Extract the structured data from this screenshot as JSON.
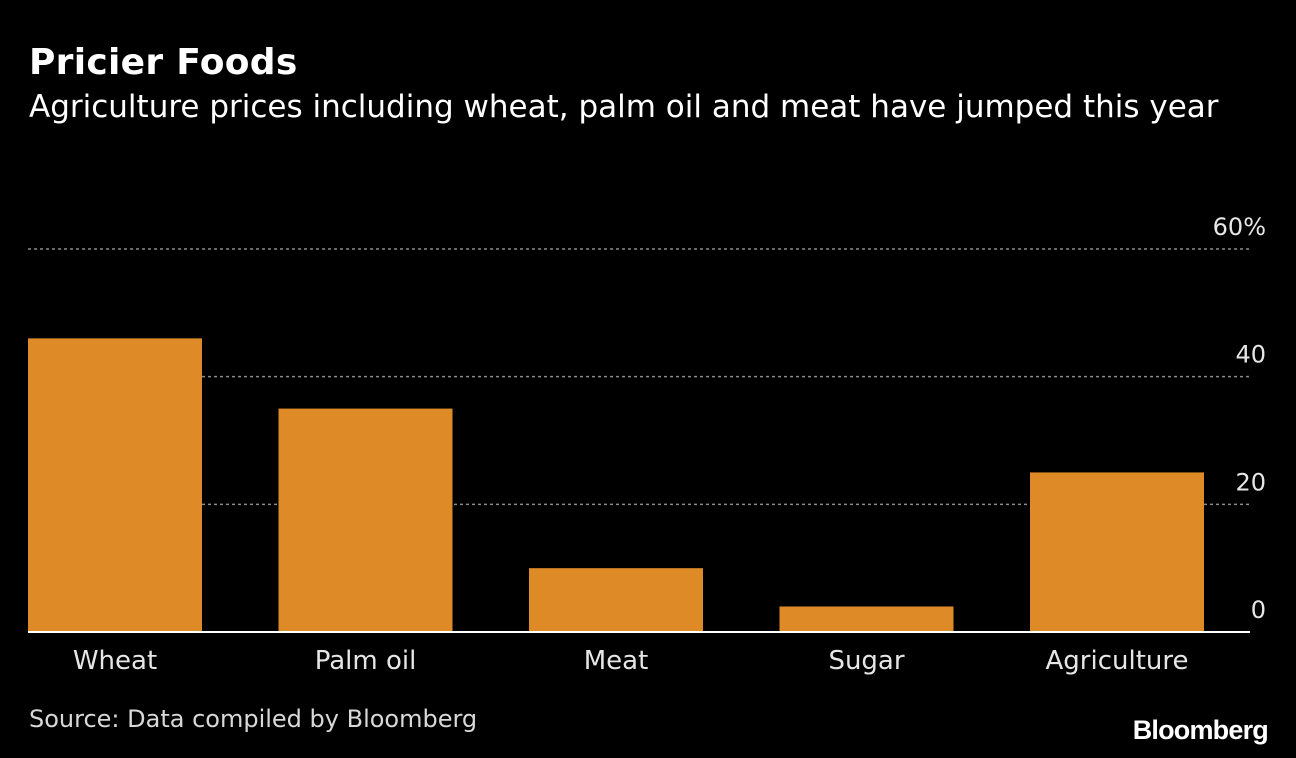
{
  "header": {
    "title": "Pricier Foods",
    "subtitle": "Agriculture prices including wheat, palm oil and meat have jumped this year"
  },
  "footer": {
    "source": "Source: Data compiled by Bloomberg",
    "brand": "Bloomberg"
  },
  "colors": {
    "background": "#000000",
    "bar": "#de8a26",
    "gridline": "#8a8a8a",
    "text": "#ffffff"
  },
  "chart_data": {
    "type": "bar",
    "title": "Pricier Foods",
    "subtitle": "Agriculture prices including wheat, palm oil and meat have jumped this year",
    "categories": [
      "Wheat",
      "Palm oil",
      "Meat",
      "Sugar",
      "Agriculture"
    ],
    "values": [
      46,
      35,
      10,
      4,
      25
    ],
    "xlabel": "",
    "ylabel": "",
    "ylim": [
      0,
      60
    ],
    "yticks": [
      0,
      20,
      40,
      60
    ],
    "ytick_labels": [
      "0",
      "20",
      "40",
      "60%"
    ],
    "grid": true,
    "y_axis_side": "right"
  }
}
